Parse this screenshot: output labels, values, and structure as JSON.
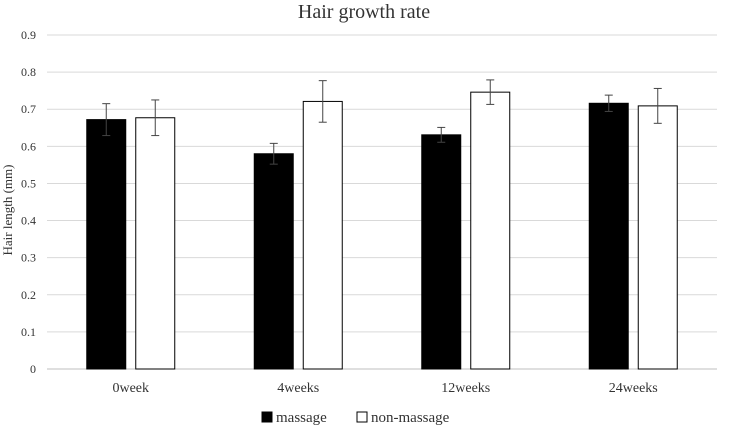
{
  "chart_data": {
    "type": "bar",
    "title": "Hair growth rate",
    "ylabel": "Hair length (mm)",
    "xlabel": "",
    "ylim": [
      0,
      0.9
    ],
    "yticks": [
      "0",
      "0.1",
      "0.2",
      "0.3",
      "0.4",
      "0.5",
      "0.6",
      "0.7",
      "0.8",
      "0.9"
    ],
    "categories": [
      "0week",
      "4weeks",
      "12weeks",
      "24weeks"
    ],
    "grid": true,
    "legend_position": "bottom",
    "series": [
      {
        "name": "massage",
        "color": "#000000",
        "values": [
          0.672,
          0.58,
          0.631,
          0.716
        ],
        "errors": [
          0.043,
          0.028,
          0.02,
          0.022
        ]
      },
      {
        "name": "non-massage",
        "color": "#ffffff",
        "values": [
          0.677,
          0.721,
          0.746,
          0.709
        ],
        "errors": [
          0.048,
          0.056,
          0.033,
          0.047
        ]
      }
    ]
  }
}
